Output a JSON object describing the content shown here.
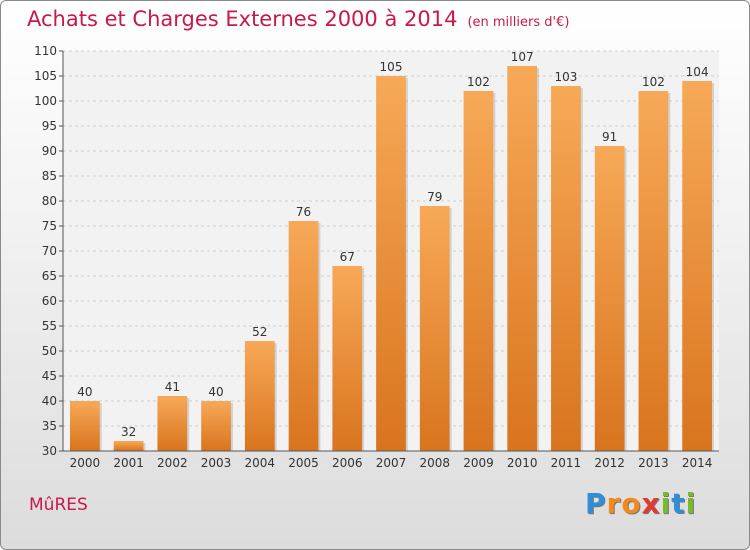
{
  "header": {
    "title": "Achats et Charges Externes 2000 à 2014",
    "subtitle": "(en milliers d'€)"
  },
  "footer": {
    "commune": "MûRES",
    "logo_letters": [
      "P",
      "r",
      "o",
      "x",
      "i",
      "t",
      "i"
    ],
    "logo_colors": [
      "#2e8fd6",
      "#f08a1c",
      "#f08a1c",
      "#e23a2e",
      "#7ab82e",
      "#2e8fd6",
      "#7ab82e"
    ]
  },
  "chart_data": {
    "type": "bar",
    "title": "Achats et Charges Externes 2000 à 2014",
    "subtitle": "(en milliers d'€)",
    "categories": [
      "2000",
      "2001",
      "2002",
      "2003",
      "2004",
      "2005",
      "2006",
      "2007",
      "2008",
      "2009",
      "2010",
      "2011",
      "2012",
      "2013",
      "2014"
    ],
    "values": [
      40,
      32,
      41,
      40,
      52,
      76,
      67,
      105,
      79,
      102,
      107,
      103,
      91,
      102,
      104
    ],
    "ylim": [
      30,
      110
    ],
    "yticks": [
      30,
      35,
      40,
      45,
      50,
      55,
      60,
      65,
      70,
      75,
      80,
      85,
      90,
      95,
      100,
      105,
      110
    ],
    "grid": true,
    "bar_color_light": "#f7a957",
    "bar_color_dark": "#d9741e"
  }
}
